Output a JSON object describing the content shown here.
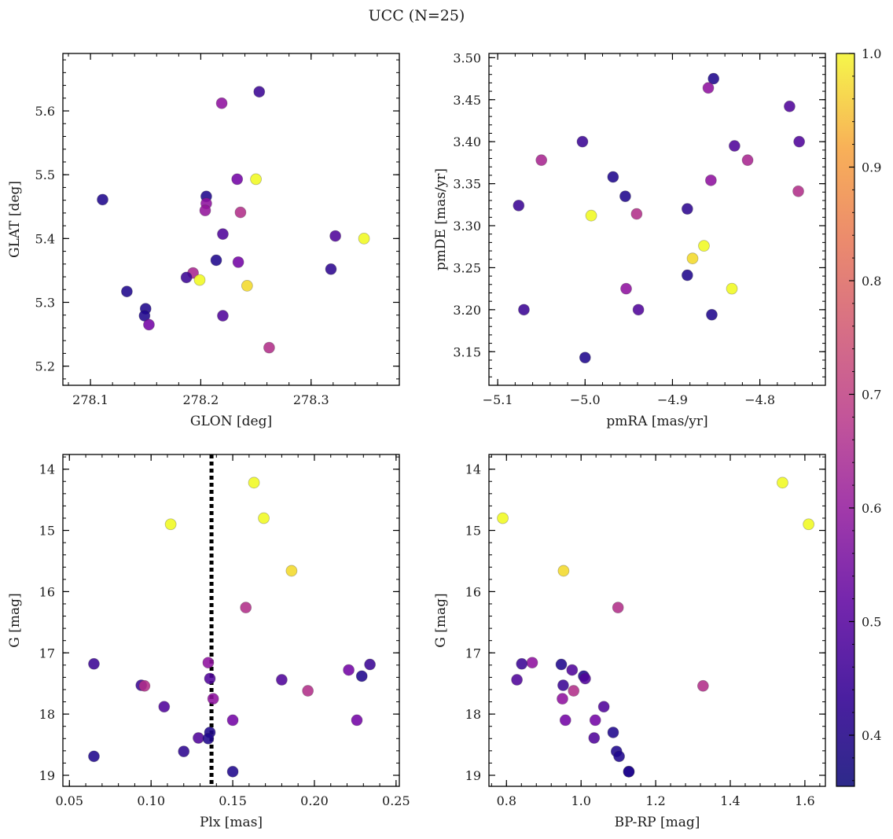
{
  "title": "UCC (N=25)",
  "colorbar": {
    "vmin": 0.355,
    "vmax": 1.0,
    "ticks": [
      0.4,
      0.5,
      0.6,
      0.7,
      0.8,
      0.9,
      1.0
    ],
    "tick_labels": [
      "0.4",
      "0.5",
      "0.6",
      "0.7",
      "0.8",
      "0.9",
      "1.0"
    ],
    "colormap": "plasma"
  },
  "chart_data": [
    {
      "type": "scatter",
      "panel": "top-left",
      "xlabel": "GLON [deg]",
      "ylabel": "GLAT [deg]",
      "xlim": [
        278.075,
        278.38
      ],
      "ylim": [
        5.17,
        5.69
      ],
      "y_inverted": false,
      "xticks": [
        278.1,
        278.2,
        278.3
      ],
      "xtick_labels": [
        "278.1",
        "278.2",
        "278.3"
      ],
      "yticks": [
        5.2,
        5.3,
        5.4,
        5.5,
        5.6
      ],
      "ytick_labels": [
        "5.2",
        "5.3",
        "5.4",
        "5.5",
        "5.6"
      ],
      "x": [
        278.253,
        278.219,
        278.111,
        278.205,
        278.233,
        278.25,
        278.205,
        278.204,
        278.236,
        278.22,
        278.322,
        278.348,
        278.214,
        278.234,
        278.318,
        278.193,
        278.187,
        278.199,
        278.242,
        278.133,
        278.15,
        278.149,
        278.153,
        278.22,
        278.262
      ],
      "y": [
        5.63,
        5.612,
        5.461,
        5.466,
        5.493,
        5.493,
        5.455,
        5.444,
        5.441,
        5.407,
        5.404,
        5.4,
        5.366,
        5.363,
        5.352,
        5.346,
        5.339,
        5.335,
        5.326,
        5.317,
        5.29,
        5.279,
        5.265,
        5.279,
        5.229
      ],
      "c": [
        0.42,
        0.55,
        0.38,
        0.38,
        0.5,
        1.0,
        0.55,
        0.56,
        0.62,
        0.45,
        0.45,
        1.0,
        0.38,
        0.5,
        0.4,
        0.6,
        0.42,
        1.0,
        0.95,
        0.38,
        0.38,
        0.38,
        0.5,
        0.45,
        0.62
      ]
    },
    {
      "type": "scatter",
      "panel": "top-right",
      "xlabel": "pmRA [mas/yr]",
      "ylabel": "pmDE [mas/yr]",
      "xlim": [
        -5.11,
        -4.725
      ],
      "ylim": [
        3.11,
        3.505
      ],
      "y_inverted": false,
      "xticks": [
        -5.1,
        -5.0,
        -4.9,
        -4.8
      ],
      "xtick_labels": [
        "−5.1",
        "−5.0",
        "−4.9",
        "−4.8"
      ],
      "yticks": [
        3.15,
        3.2,
        3.25,
        3.3,
        3.35,
        3.4,
        3.45,
        3.5
      ],
      "ytick_labels": [
        "3.15",
        "3.20",
        "3.25",
        "3.30",
        "3.35",
        "3.40",
        "3.45",
        "3.50"
      ],
      "x": [
        -4.853,
        -4.859,
        -4.766,
        -5.003,
        -4.755,
        -4.829,
        -5.05,
        -4.814,
        -4.968,
        -4.856,
        -4.756,
        -4.954,
        -5.076,
        -4.883,
        -4.993,
        -4.941,
        -4.864,
        -4.877,
        -4.883,
        -4.832,
        -4.953,
        -5.07,
        -4.939,
        -4.855,
        -5.0
      ],
      "y": [
        3.475,
        3.464,
        3.442,
        3.4,
        3.4,
        3.395,
        3.378,
        3.378,
        3.358,
        3.354,
        3.341,
        3.335,
        3.324,
        3.32,
        3.312,
        3.314,
        3.276,
        3.261,
        3.241,
        3.225,
        3.225,
        3.2,
        3.2,
        3.194,
        3.143
      ],
      "c": [
        0.38,
        0.55,
        0.45,
        0.42,
        0.45,
        0.45,
        0.6,
        0.6,
        0.38,
        0.55,
        0.62,
        0.38,
        0.42,
        0.4,
        1.0,
        0.62,
        1.0,
        0.95,
        0.38,
        1.0,
        0.55,
        0.42,
        0.45,
        0.38,
        0.38
      ]
    },
    {
      "type": "scatter",
      "panel": "bottom-left",
      "xlabel": "Plx [mas]",
      "ylabel": "G [mag]",
      "xlim": [
        0.046,
        0.252
      ],
      "ylim": [
        19.18,
        13.76
      ],
      "y_inverted": true,
      "xticks": [
        0.05,
        0.1,
        0.15,
        0.2,
        0.25
      ],
      "xtick_labels": [
        "0.05",
        "0.10",
        "0.15",
        "0.20",
        "0.25"
      ],
      "yticks": [
        14,
        15,
        16,
        17,
        18,
        19
      ],
      "ytick_labels": [
        "14",
        "15",
        "16",
        "17",
        "18",
        "19"
      ],
      "vline": 0.137,
      "x": [
        0.163,
        0.169,
        0.112,
        0.186,
        0.158,
        0.065,
        0.135,
        0.234,
        0.221,
        0.229,
        0.136,
        0.18,
        0.094,
        0.096,
        0.196,
        0.138,
        0.108,
        0.15,
        0.226,
        0.136,
        0.129,
        0.135,
        0.12,
        0.065,
        0.15
      ],
      "y": [
        14.22,
        14.8,
        14.9,
        15.66,
        16.26,
        17.18,
        17.16,
        17.19,
        17.28,
        17.38,
        17.42,
        17.44,
        17.53,
        17.54,
        17.62,
        17.75,
        17.88,
        18.1,
        18.1,
        18.3,
        18.39,
        18.4,
        18.61,
        18.69,
        18.94
      ],
      "c": [
        1.0,
        1.0,
        1.0,
        0.95,
        0.62,
        0.42,
        0.55,
        0.42,
        0.5,
        0.38,
        0.45,
        0.45,
        0.42,
        0.62,
        0.62,
        0.55,
        0.45,
        0.5,
        0.5,
        0.38,
        0.45,
        0.38,
        0.4,
        0.38,
        0.38
      ]
    },
    {
      "type": "scatter",
      "panel": "bottom-right",
      "xlabel": "BP-RP [mag]",
      "ylabel": "G [mag]",
      "xlim": [
        0.753,
        1.655
      ],
      "ylim": [
        19.18,
        13.76
      ],
      "y_inverted": true,
      "xticks": [
        0.8,
        1.0,
        1.2,
        1.4,
        1.6
      ],
      "xtick_labels": [
        "0.8",
        "1.0",
        "1.2",
        "1.4",
        "1.6"
      ],
      "yticks": [
        14,
        15,
        16,
        17,
        18,
        19
      ],
      "ytick_labels": [
        "14",
        "15",
        "16",
        "17",
        "18",
        "19"
      ],
      "x": [
        1.54,
        0.79,
        1.61,
        0.953,
        1.099,
        0.869,
        0.841,
        0.947,
        0.976,
        1.007,
        1.011,
        0.828,
        0.952,
        1.327,
        0.98,
        0.95,
        1.061,
        1.038,
        0.958,
        1.086,
        1.035,
        1.095,
        1.102,
        1.128,
        1.128
      ],
      "y": [
        14.22,
        14.8,
        14.9,
        15.66,
        16.26,
        17.16,
        17.18,
        17.19,
        17.28,
        17.38,
        17.42,
        17.44,
        17.53,
        17.54,
        17.62,
        17.75,
        17.88,
        18.1,
        18.1,
        18.3,
        18.39,
        18.61,
        18.69,
        18.94,
        18.94
      ],
      "c": [
        1.0,
        1.0,
        1.0,
        0.95,
        0.62,
        0.55,
        0.42,
        0.38,
        0.45,
        0.38,
        0.45,
        0.45,
        0.42,
        0.62,
        0.62,
        0.55,
        0.45,
        0.5,
        0.5,
        0.38,
        0.45,
        0.38,
        0.38,
        0.38,
        0.38
      ]
    }
  ]
}
